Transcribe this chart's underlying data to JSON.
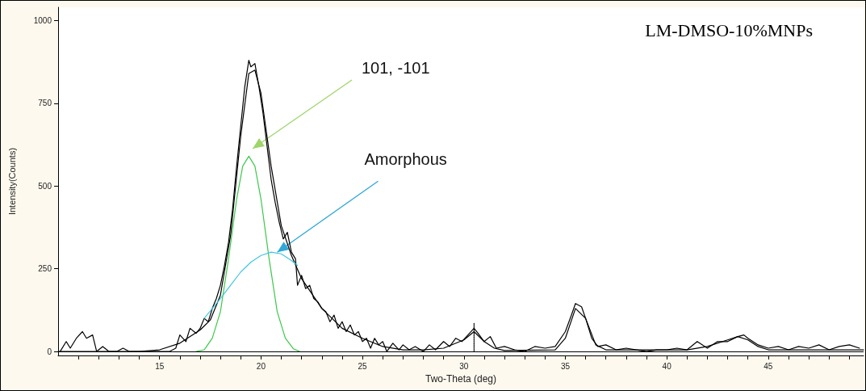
{
  "chart_data": {
    "type": "line",
    "title": "LM-DMSO-10%MNPs",
    "xlabel": "Two-Theta (deg)",
    "ylabel": "Intensity(Counts)",
    "xlim": [
      10,
      49.7
    ],
    "ylim": [
      -12,
      1040
    ],
    "xticks": [
      {
        "value": 11,
        "label": null
      },
      {
        "value": 12,
        "label": null
      },
      {
        "value": 13,
        "label": null
      },
      {
        "value": 14,
        "label": null
      },
      15,
      {
        "value": 16,
        "label": null
      },
      {
        "value": 17,
        "label": null
      },
      {
        "value": 18,
        "label": null
      },
      {
        "value": 19,
        "label": null
      },
      20,
      {
        "value": 21,
        "label": null
      },
      {
        "value": 22,
        "label": null
      },
      {
        "value": 23,
        "label": null
      },
      {
        "value": 24,
        "label": null
      },
      25,
      {
        "value": 26,
        "label": null
      },
      {
        "value": 27,
        "label": null
      },
      {
        "value": 28,
        "label": null
      },
      {
        "value": 29,
        "label": null
      },
      30,
      {
        "value": 31,
        "label": null
      },
      {
        "value": 32,
        "label": null
      },
      {
        "value": 33,
        "label": null
      },
      {
        "value": 34,
        "label": null
      },
      35,
      {
        "value": 36,
        "label": null
      },
      {
        "value": 37,
        "label": null
      },
      {
        "value": 38,
        "label": null
      },
      {
        "value": 39,
        "label": null
      },
      40,
      {
        "value": 41,
        "label": null
      },
      {
        "value": 42,
        "label": null
      },
      {
        "value": 43,
        "label": null
      },
      {
        "value": 44,
        "label": null
      },
      45,
      {
        "value": 46,
        "label": null
      },
      {
        "value": 47,
        "label": null
      },
      {
        "value": 48,
        "label": null
      },
      {
        "value": 49,
        "label": null
      }
    ],
    "yticks": [
      0,
      250,
      500,
      750,
      1000
    ],
    "grid": false,
    "marker": "none",
    "line_style": "solid",
    "ref_lines": [
      {
        "axis": "y",
        "value": 0,
        "color": "#000000",
        "line_style": "solid"
      }
    ],
    "annotations": [
      "101, -101",
      {
        "text": "Amorphous",
        "x": 20.8,
        "y": 300
      }
    ],
    "series": [
      {
        "color": "#000000",
        "x": [
          10.1,
          10.4,
          10.6,
          10.9,
          11.2,
          11.4,
          11.7,
          11.9,
          12.2,
          12.5,
          12.9,
          13.2,
          13.5,
          14,
          14.5,
          15,
          15.5,
          15.8,
          16,
          16.3,
          16.5,
          16.8,
          17,
          17.2,
          17.4,
          17.6,
          17.8,
          18,
          18.2,
          18.4,
          18.6,
          18.8,
          19,
          19.2,
          19.4,
          19.5,
          19.7,
          19.9,
          20.1,
          20.3,
          20.5,
          20.7,
          20.9,
          21.1,
          21.3,
          21.5,
          21.7,
          21.8,
          22,
          22.2,
          22.4,
          22.6,
          22.8,
          23,
          23.2,
          23.4,
          23.6,
          23.8,
          24,
          24.2,
          24.4,
          24.6,
          24.8,
          25,
          25.2,
          25.4,
          25.6,
          25.8,
          26,
          26.2,
          26.5,
          26.8,
          27,
          27.3,
          27.6,
          28,
          28.3,
          28.6,
          29,
          29.3,
          29.6,
          29.9,
          30.2,
          30.5,
          30.7,
          31,
          31.3,
          31.6,
          32,
          32.5,
          33,
          33.5,
          34,
          34.5,
          35,
          35.3,
          35.5,
          35.8,
          36,
          36.3,
          36.6,
          37,
          37.5,
          38,
          38.5,
          39,
          39.5,
          40,
          40.5,
          41,
          41.5,
          42,
          42.5,
          43,
          43.5,
          43.8,
          44,
          44.5,
          45,
          45.5,
          46,
          46.5,
          47,
          47.5,
          48,
          48.5,
          49,
          49.5
        ],
        "values": [
          0,
          30,
          10,
          40,
          60,
          40,
          50,
          0,
          15,
          0,
          0,
          10,
          0,
          0,
          0,
          0,
          0,
          10,
          50,
          30,
          70,
          55,
          70,
          100,
          90,
          130,
          160,
          200,
          260,
          330,
          430,
          560,
          680,
          800,
          880,
          860,
          870,
          800,
          720,
          620,
          520,
          450,
          390,
          340,
          360,
          300,
          280,
          200,
          230,
          190,
          200,
          160,
          150,
          130,
          120,
          90,
          110,
          70,
          90,
          60,
          80,
          50,
          60,
          30,
          40,
          10,
          40,
          20,
          30,
          0,
          25,
          5,
          20,
          5,
          15,
          0,
          20,
          5,
          30,
          15,
          40,
          30,
          50,
          70,
          55,
          30,
          45,
          10,
          15,
          5,
          0,
          15,
          10,
          15,
          60,
          110,
          145,
          135,
          100,
          40,
          15,
          20,
          5,
          10,
          5,
          0,
          5,
          5,
          10,
          5,
          30,
          10,
          30,
          30,
          45,
          50,
          40,
          20,
          10,
          15,
          5,
          15,
          10,
          20,
          5,
          15,
          20,
          10
        ]
      },
      {
        "color": "#000000",
        "x": [
          10,
          14,
          15,
          16,
          17,
          17.5,
          18,
          18.5,
          19,
          19.4,
          19.7,
          20,
          20.5,
          21,
          21.5,
          22,
          23,
          24,
          25,
          26,
          27,
          28,
          29,
          30,
          30.5,
          31,
          31.5,
          32,
          34.5,
          35,
          35.5,
          36,
          36.5,
          37,
          41,
          42,
          43,
          43.5,
          44,
          44.5,
          45,
          49.7
        ],
        "values": [
          0,
          0,
          5,
          25,
          65,
          95,
          170,
          350,
          650,
          840,
          850,
          780,
          560,
          380,
          290,
          220,
          130,
          70,
          40,
          15,
          5,
          5,
          10,
          35,
          60,
          30,
          10,
          3,
          5,
          40,
          130,
          100,
          20,
          5,
          5,
          15,
          35,
          45,
          35,
          15,
          5,
          5
        ]
      },
      {
        "color": "#3cc84a",
        "x": [
          16.8,
          17.2,
          17.6,
          18,
          18.4,
          18.8,
          19.1,
          19.4,
          19.7,
          20,
          20.4,
          20.8,
          21.2,
          21.6,
          21.9
        ],
        "values": [
          0,
          5,
          40,
          120,
          280,
          460,
          560,
          590,
          560,
          460,
          280,
          120,
          40,
          8,
          0
        ]
      },
      {
        "color": "#40c8e0",
        "x": [
          17.2,
          17.6,
          18,
          18.5,
          19,
          19.5,
          20,
          20.5,
          21,
          21.5,
          21.8
        ],
        "values": [
          100,
          130,
          160,
          200,
          240,
          270,
          290,
          300,
          295,
          275,
          260
        ]
      },
      {
        "color": "#000000",
        "line_style": "dotted",
        "x": [
          30.5,
          30.5
        ],
        "values": [
          0,
          85
        ]
      }
    ]
  }
}
